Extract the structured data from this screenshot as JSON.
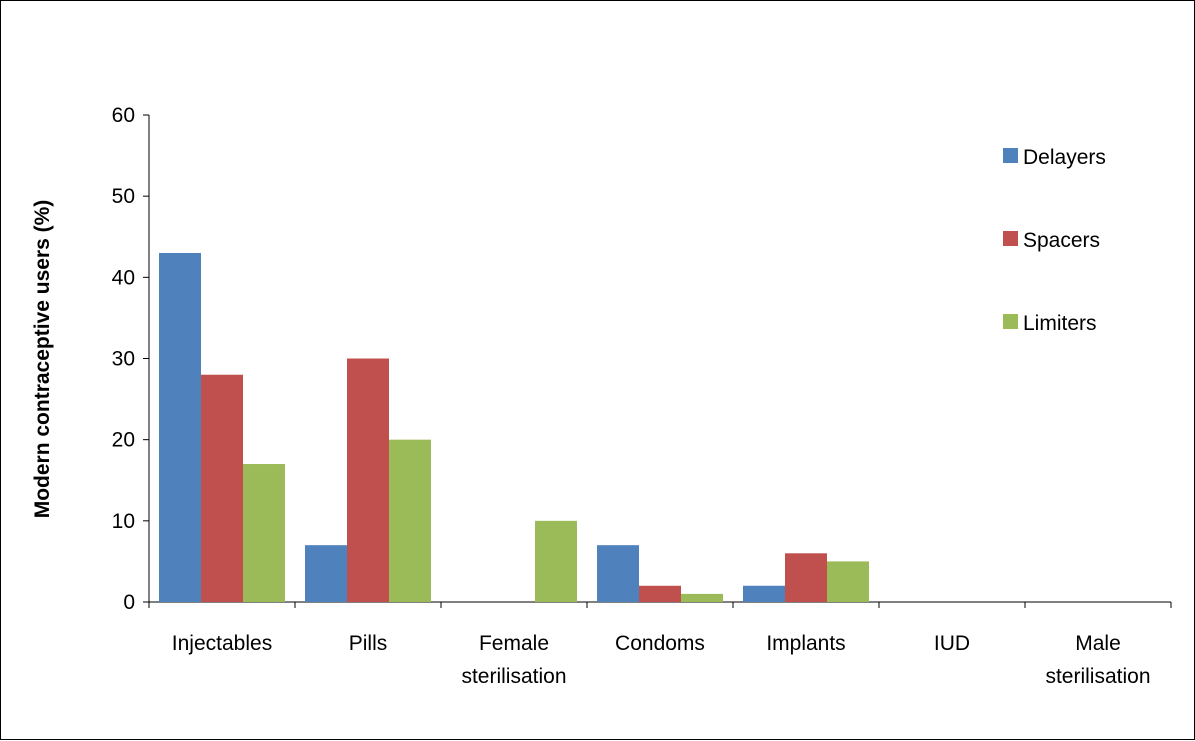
{
  "chart_data": {
    "type": "bar",
    "title": "",
    "xlabel": "",
    "ylabel": "Modern contraceptive users (%)",
    "ylim": [
      0,
      60
    ],
    "yticks": [
      0,
      10,
      20,
      30,
      40,
      50,
      60
    ],
    "grid": false,
    "legend_position": "right",
    "categories": [
      [
        "Injectables"
      ],
      [
        "Pills"
      ],
      [
        "Female",
        "sterilisation"
      ],
      [
        "Condoms"
      ],
      [
        "Implants"
      ],
      [
        "IUD"
      ],
      [
        "Male",
        "sterilisation"
      ]
    ],
    "series": [
      {
        "name": "Delayers",
        "color": "#4f81bd",
        "values": [
          43,
          7,
          0,
          7,
          2,
          0,
          0
        ]
      },
      {
        "name": "Spacers",
        "color": "#c0504d",
        "values": [
          28,
          30,
          0,
          2,
          6,
          0,
          0
        ]
      },
      {
        "name": "Limiters",
        "color": "#9bbb59",
        "values": [
          17,
          20,
          10,
          1,
          5,
          0,
          0
        ]
      }
    ]
  }
}
